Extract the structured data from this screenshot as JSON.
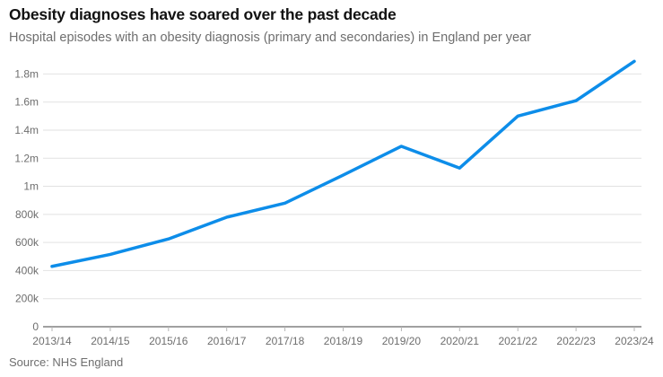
{
  "header": {
    "title": "Obesity diagnoses have soared over the past decade",
    "subtitle": "Hospital episodes with an obesity diagnosis (primary and secondaries) in England per year"
  },
  "footer": {
    "source": "Source: NHS England"
  },
  "colors": {
    "line": "#0d8de9",
    "grid": "#e2e2e2",
    "axis": "#808080",
    "tick": "#b5b5b5",
    "title_text": "#121212",
    "muted_text": "#6e6e6e"
  },
  "chart_data": {
    "type": "line",
    "title": "Obesity diagnoses have soared over the past decade",
    "subtitle": "Hospital episodes with an obesity diagnosis (primary and secondaries) in England per year",
    "source": "Source: NHS England",
    "xlabel": "",
    "ylabel": "",
    "legend": "none",
    "grid": "horizontal",
    "ylim": [
      0,
      1900000
    ],
    "categories": [
      "2013/14",
      "2014/15",
      "2015/16",
      "2016/17",
      "2017/18",
      "2018/19",
      "2019/20",
      "2020/21",
      "2021/22",
      "2022/23",
      "2023/24"
    ],
    "values": [
      430000,
      515000,
      625000,
      780000,
      880000,
      1080000,
      1285000,
      1130000,
      1500000,
      1610000,
      1890000
    ],
    "y_ticks": [
      {
        "value": 0,
        "label": "0"
      },
      {
        "value": 200000,
        "label": "200k"
      },
      {
        "value": 400000,
        "label": "400k"
      },
      {
        "value": 600000,
        "label": "600k"
      },
      {
        "value": 800000,
        "label": "800k"
      },
      {
        "value": 1000000,
        "label": "1m"
      },
      {
        "value": 1200000,
        "label": "1.2m"
      },
      {
        "value": 1400000,
        "label": "1.4m"
      },
      {
        "value": 1600000,
        "label": "1.6m"
      },
      {
        "value": 1800000,
        "label": "1.8m"
      }
    ]
  }
}
